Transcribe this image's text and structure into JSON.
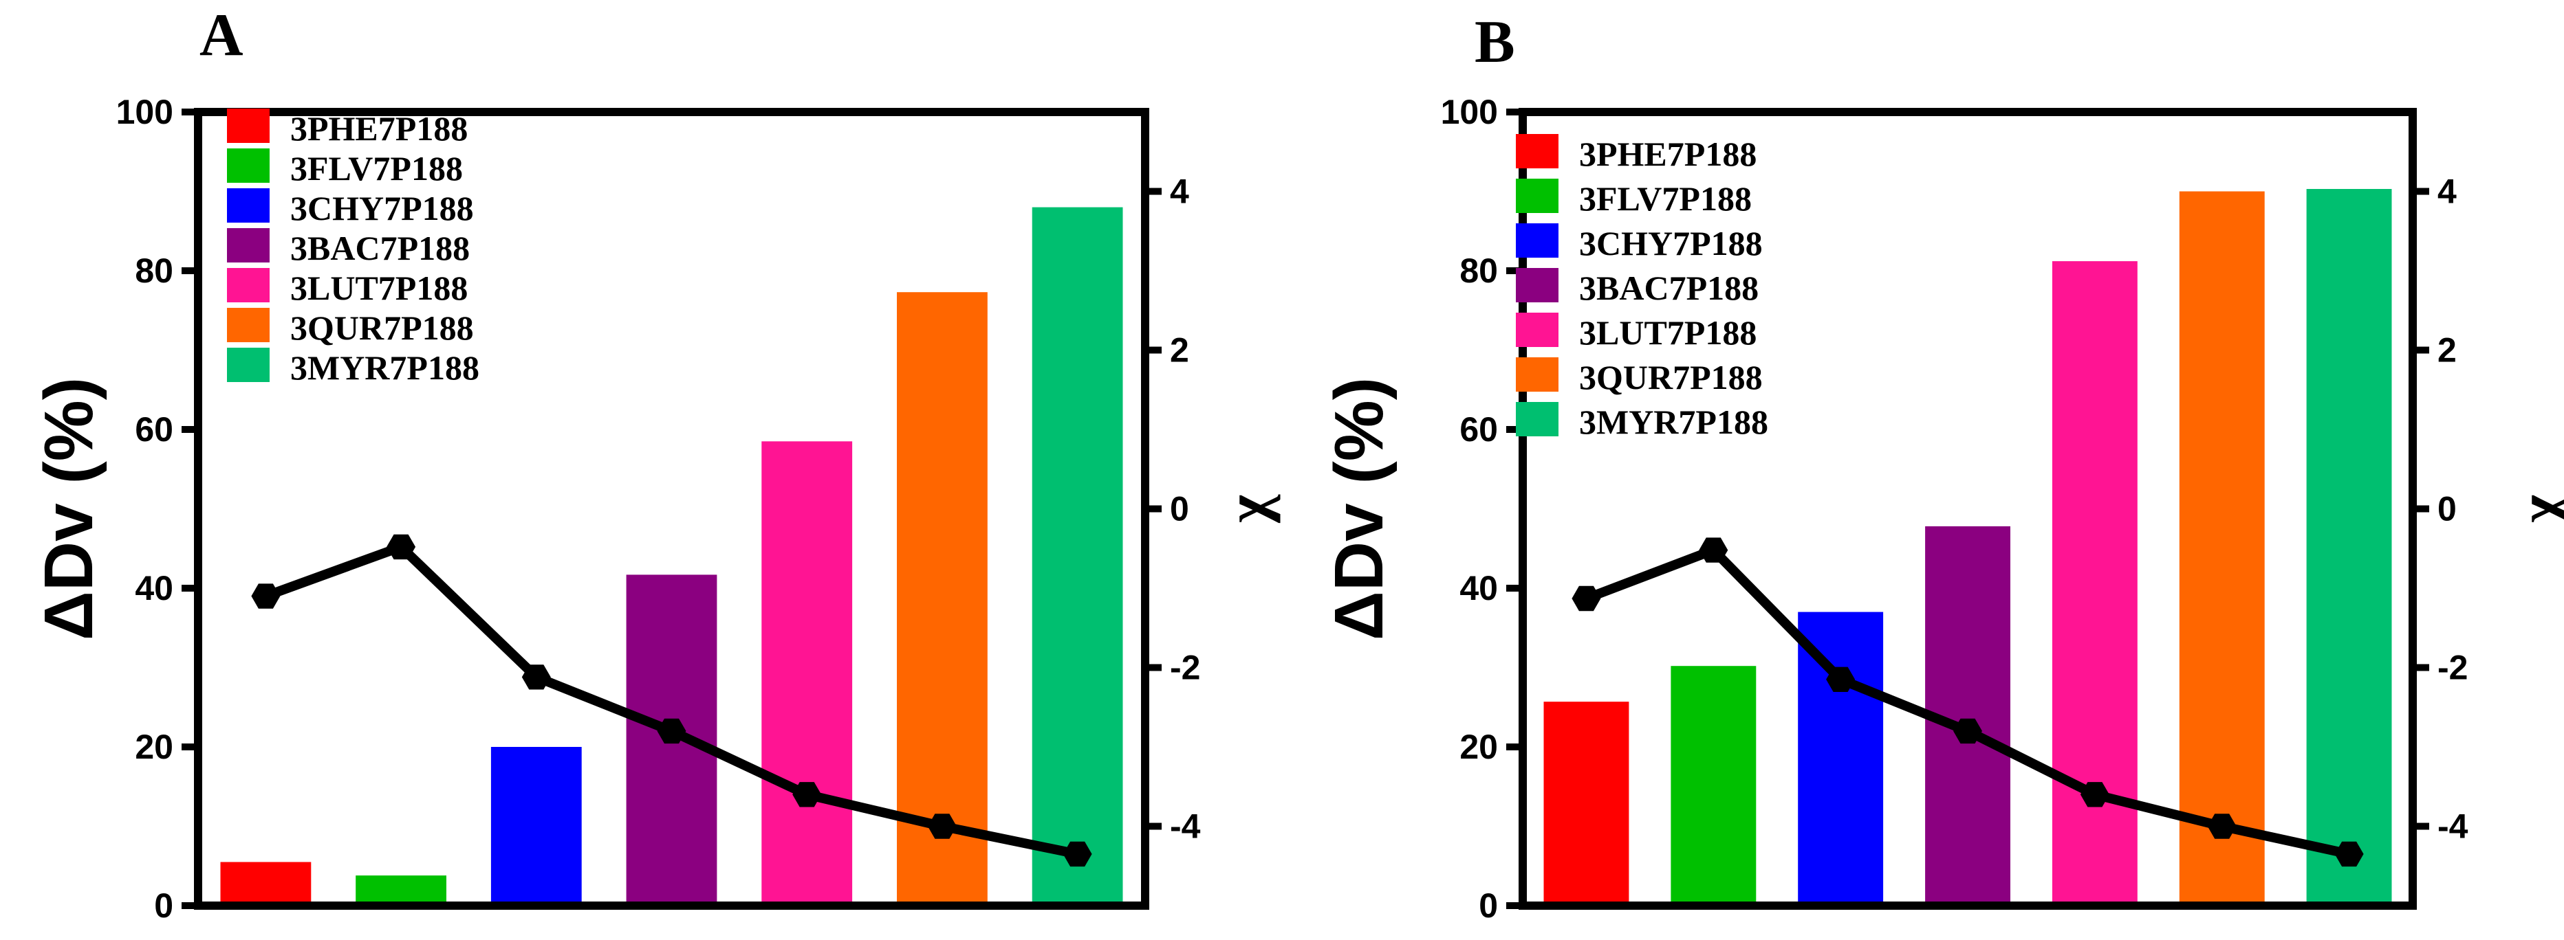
{
  "chart_data": [
    {
      "panel_label": "A",
      "type": "bar",
      "categories": [
        "3PHE7P188",
        "3FLV7P188",
        "3CHY7P188",
        "3BAC7P188",
        "3LUT7P188",
        "3QUR7P188",
        "3MYR7P188"
      ],
      "values": [
        5.5,
        3.8,
        20,
        41.7,
        58.5,
        77.3,
        88
      ],
      "colors": [
        "#ff0000",
        "#00c000",
        "#0000ff",
        "#8b0080",
        "#ff1493",
        "#ff6600",
        "#00bf70"
      ],
      "ylabel": "ΔDv (%)",
      "ylim": [
        0,
        100
      ],
      "yticks": [
        "0",
        "20",
        "40",
        "60",
        "80",
        "100"
      ],
      "y2label": "χ",
      "y2lim": [
        -5,
        5
      ],
      "y2ticks": [
        "-4",
        "-2",
        "0",
        "2",
        "4"
      ],
      "line": {
        "type": "line",
        "marker": "hexagon",
        "color": "#000000",
        "values": [
          -1.1,
          -0.48,
          -2.12,
          -2.8,
          -3.6,
          -4.0,
          -4.35
        ]
      },
      "legend_position": "top-left",
      "grid": false
    },
    {
      "panel_label": "B",
      "type": "bar",
      "categories": [
        "3PHE7P188",
        "3FLV7P188",
        "3CHY7P188",
        "3BAC7P188",
        "3LUT7P188",
        "3QUR7P188",
        "3MYR7P188"
      ],
      "values": [
        25.7,
        30.2,
        37,
        47.8,
        81.2,
        90,
        90.3
      ],
      "colors": [
        "#ff0000",
        "#00c000",
        "#0000ff",
        "#8b0080",
        "#ff1493",
        "#ff6600",
        "#00bf70"
      ],
      "ylabel": "ΔDv (%)",
      "ylim": [
        0,
        100
      ],
      "yticks": [
        "0",
        "20",
        "40",
        "60",
        "80",
        "100"
      ],
      "y2label": "χ",
      "y2lim": [
        -5,
        5
      ],
      "y2ticks": [
        "-4",
        "-2",
        "0",
        "2",
        "4"
      ],
      "line": {
        "type": "line",
        "marker": "hexagon",
        "color": "#000000",
        "values": [
          -1.13,
          -0.52,
          -2.15,
          -2.8,
          -3.6,
          -4.0,
          -4.35
        ]
      },
      "legend_position": "top-left",
      "grid": false
    }
  ]
}
